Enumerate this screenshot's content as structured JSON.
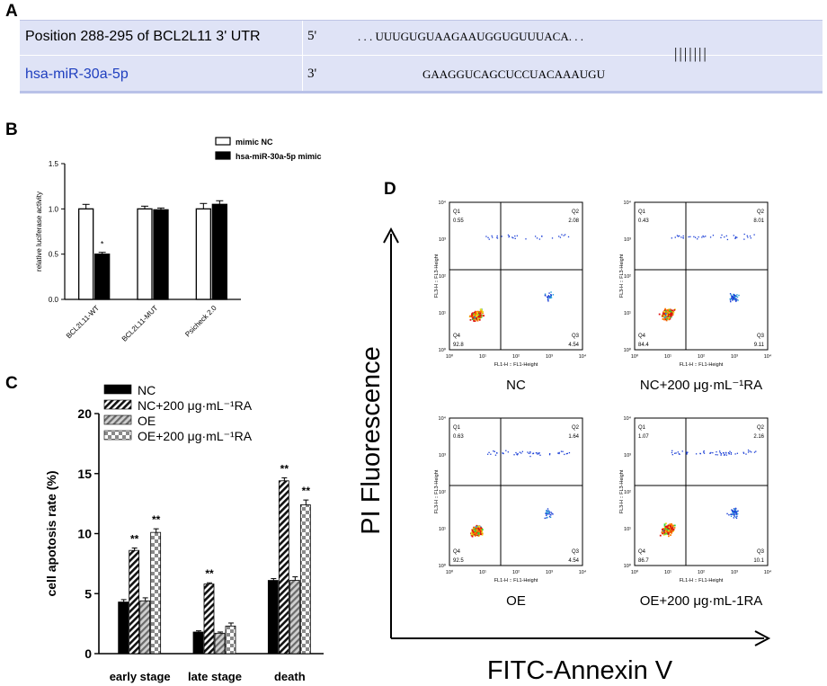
{
  "panelA": {
    "letter": "A",
    "row1_label": "Position 288-295 of BCL2L11 3' UTR",
    "row1_end": "5'",
    "row1_seq": ". . . UUUGUGUAAGAAUGGUGUUUACA. . .",
    "pairing": "|||||||",
    "row2_label": "hsa-miR-30a-5p",
    "row2_end": "3'",
    "row2_seq": "GAAGGUCAGCUCCUACAAAUGU",
    "colors": {
      "box_bg": "#dfe3f6",
      "mirna_text": "#1f3fbf"
    }
  },
  "panelB": {
    "letter": "B"
  },
  "panelC": {
    "letter": "C"
  },
  "panelD": {
    "letter": "D",
    "y_label": "PI Fluorescence",
    "x_label": "FITC-Annexin V",
    "plot_y_axis": "FL3-H :: FL3-Height",
    "plot_x_axis": "FL1-H :: FL1-Height",
    "plots": [
      {
        "caption": "NC",
        "q1_label": "Q1",
        "q1": "0.55",
        "q2_label": "Q2",
        "q2": "2.08",
        "q3_label": "Q3",
        "q3": "4.54",
        "q4_label": "Q4",
        "q4": "92.8"
      },
      {
        "caption": "NC+200 μg·mL⁻¹RA",
        "q1_label": "Q1",
        "q1": "0.43",
        "q2_label": "Q2",
        "q2": "8.01",
        "q3_label": "Q3",
        "q3": "9.11",
        "q4_label": "Q4",
        "q4": "84.4"
      },
      {
        "caption": "OE",
        "q1_label": "Q1",
        "q1": "0.63",
        "q2_label": "Q2",
        "q2": "1.64",
        "q3_label": "Q3",
        "q3": "4.54",
        "q4_label": "Q4",
        "q4": "92.5"
      },
      {
        "caption": "OE+200 μg·mL-1RA",
        "q1_label": "Q1",
        "q1": "1.07",
        "q2_label": "Q2",
        "q2": "2.16",
        "q3_label": "Q3",
        "q3": "10.1",
        "q4_label": "Q4",
        "q4": "86.7"
      }
    ],
    "tick_labels": [
      "10⁰",
      "10¹",
      "10²",
      "10³",
      "10⁴"
    ]
  },
  "chart_data": [
    {
      "id": "B",
      "type": "bar",
      "ylabel": "relative luciferase activity",
      "ylim": [
        0,
        1.5
      ],
      "yticks": [
        "0.0",
        "0.5",
        "1.0",
        "1.5"
      ],
      "categories": [
        "BCL2L11-WT",
        "BCL2L11-MUT",
        "Psicheck 2.0"
      ],
      "series": [
        {
          "name": "mimic NC",
          "values": [
            1.0,
            1.0,
            1.0
          ],
          "errors": [
            0.05,
            0.03,
            0.06
          ],
          "color": "#ffffff"
        },
        {
          "name": "hsa-miR-30a-5p mimic",
          "values": [
            0.5,
            0.99,
            1.05
          ],
          "errors": [
            0.02,
            0.02,
            0.04
          ],
          "color": "#000000"
        }
      ],
      "annotations": [
        {
          "category": 0,
          "series": 1,
          "text": "*"
        }
      ],
      "legend": "top-right"
    },
    {
      "id": "C",
      "type": "bar",
      "ylabel": "cell apotosis rate (%)",
      "ylim": [
        0,
        20
      ],
      "yticks": [
        "0",
        "5",
        "10",
        "15",
        "20"
      ],
      "categories": [
        "early stage",
        "late stage",
        "death"
      ],
      "series": [
        {
          "name": "NC",
          "values": [
            4.3,
            1.8,
            6.1
          ],
          "errors": [
            0.2,
            0.1,
            0.15
          ],
          "pattern": "solid"
        },
        {
          "name": "NC+200 μg·mL⁻¹RA",
          "values": [
            8.6,
            5.8,
            14.4
          ],
          "errors": [
            0.2,
            0.1,
            0.25
          ],
          "pattern": "stripe"
        },
        {
          "name": "OE",
          "values": [
            4.4,
            1.7,
            6.1
          ],
          "errors": [
            0.25,
            0.1,
            0.3
          ],
          "pattern": "gray"
        },
        {
          "name": "OE+200 μg·mL⁻¹RA",
          "values": [
            10.1,
            2.3,
            12.4
          ],
          "errors": [
            0.3,
            0.25,
            0.4
          ],
          "pattern": "check"
        }
      ],
      "annotations": [
        {
          "category": 0,
          "series": 1,
          "text": "**"
        },
        {
          "category": 0,
          "series": 3,
          "text": "**"
        },
        {
          "category": 1,
          "series": 1,
          "text": "**"
        },
        {
          "category": 2,
          "series": 1,
          "text": "**"
        },
        {
          "category": 2,
          "series": 3,
          "text": "**"
        }
      ],
      "legend": "top"
    }
  ]
}
